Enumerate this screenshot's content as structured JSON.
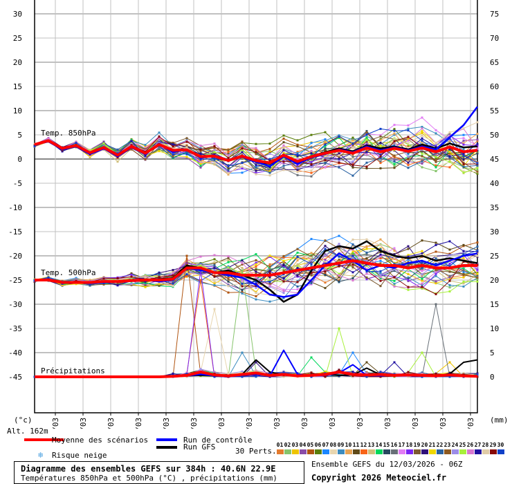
{
  "chart_data": {
    "type": "line",
    "title": "Diagramme des ensembles GEFS sur 384h : 40.6N 22.9E",
    "subtitle": "Températures 850hPa et 500hPa (°C) , précipitations (mm)",
    "left_axis_label": "(°c)",
    "right_axis_label": "(mm)",
    "altitude": "Alt. 162m",
    "ylim_left": [
      -45,
      30
    ],
    "ylim_right_mm": [
      0,
      75
    ],
    "left_ticks": [
      30,
      25,
      20,
      15,
      10,
      5,
      0,
      -5,
      -10,
      -15,
      -20,
      -25,
      -30,
      -35,
      -40,
      -45
    ],
    "right_ticks": [
      75,
      70,
      65,
      60,
      55,
      50,
      45,
      40,
      35,
      30,
      25,
      20,
      15,
      10,
      5,
      0
    ],
    "x_ticks": [
      "13/03",
      "14/03",
      "15/03",
      "16/03",
      "17/03",
      "18/03",
      "19/03",
      "20/03",
      "21/03",
      "22/03",
      "23/03",
      "24/03",
      "25/03",
      "26/03",
      "27/03",
      "28/03"
    ],
    "time_step_hours": 12,
    "panel_labels": {
      "t850": "Temp. 850hPa",
      "t500": "Temp. 500hPa",
      "precip": "Précipitations"
    },
    "series": {
      "t850": {
        "mean": [
          3,
          3.8,
          2.2,
          2.8,
          1.3,
          2.4,
          0.8,
          2.6,
          1.2,
          3.0,
          1.8,
          1.9,
          0.5,
          0.6,
          -0.3,
          0.6,
          -0.3,
          -0.8,
          0.8,
          -0.5,
          0.5,
          1.2,
          1.8,
          1.2,
          2.3,
          1.5,
          2.2,
          1.6,
          2.3,
          1.5,
          2.5,
          1.5,
          1.8
        ],
        "control": [
          3,
          3.6,
          2.0,
          2.6,
          1.0,
          2.2,
          0.5,
          2.4,
          1.0,
          3.2,
          1.4,
          2.0,
          0.2,
          0.8,
          -0.2,
          0.4,
          -0.6,
          -1.5,
          0.5,
          -1.0,
          0.3,
          1.0,
          2.0,
          1.4,
          2.6,
          1.8,
          2.4,
          1.8,
          2.6,
          2.0,
          4.5,
          7,
          10.8
        ],
        "gfs": [
          3,
          3.7,
          2.1,
          2.7,
          1.2,
          2.3,
          0.7,
          2.5,
          1.3,
          3.1,
          1.9,
          1.8,
          0.4,
          0.7,
          -0.4,
          0.7,
          -0.5,
          -1.0,
          0.6,
          -0.7,
          0.6,
          1.4,
          2.2,
          1.6,
          2.8,
          2.2,
          2.6,
          2.0,
          3.0,
          2.2,
          3.2,
          2.4,
          2.6
        ],
        "spread": [
          0.2,
          0.3,
          0.4,
          0.5,
          0.6,
          0.7,
          0.9,
          1.0,
          1.2,
          1.3,
          1.5,
          1.6,
          1.7,
          1.8,
          2.0,
          2.1,
          2.2,
          2.3,
          2.4,
          2.5,
          2.6,
          2.7,
          2.8,
          2.9,
          3.0,
          3.0,
          3.1,
          3.1,
          3.2,
          3.2,
          3.3,
          3.3,
          3.4
        ]
      },
      "t500": {
        "mean": [
          -25,
          -25,
          -25.5,
          -25.5,
          -25.5,
          -25.3,
          -25.3,
          -25.1,
          -25,
          -25,
          -24.8,
          -22.5,
          -22.5,
          -23.5,
          -23.5,
          -24,
          -24,
          -24,
          -23.5,
          -23,
          -22.5,
          -22,
          -21.5,
          -21,
          -21.5,
          -22,
          -22,
          -22.5,
          -22,
          -22.5,
          -22.5,
          -22,
          -22
        ],
        "control": [
          -25,
          -25,
          -25.5,
          -25.6,
          -25.6,
          -25.5,
          -25.4,
          -25.2,
          -25,
          -25.3,
          -25,
          -22.5,
          -23,
          -23.5,
          -24,
          -24.5,
          -26,
          -28,
          -28.5,
          -28,
          -25,
          -22,
          -19.5,
          -21,
          -23,
          -22,
          -22.5,
          -21.5,
          -21,
          -22,
          -21,
          -20,
          -19.5
        ],
        "gfs": [
          -25,
          -25,
          -25.5,
          -25.6,
          -25.5,
          -25.4,
          -25.3,
          -25.1,
          -25,
          -24.8,
          -24.6,
          -22,
          -22.5,
          -23.5,
          -23,
          -24,
          -25,
          -27,
          -29.5,
          -28,
          -23,
          -19,
          -18,
          -18.5,
          -17,
          -19,
          -20,
          -20.5,
          -20,
          -21,
          -20.5,
          -21,
          -21.5
        ],
        "spread": [
          0.2,
          0.3,
          0.4,
          0.5,
          0.5,
          0.6,
          0.7,
          0.8,
          1.0,
          1.2,
          1.5,
          1.8,
          2.0,
          2.2,
          2.4,
          2.6,
          2.8,
          3.0,
          3.2,
          3.4,
          3.6,
          3.8,
          3.8,
          3.8,
          3.7,
          3.6,
          3.5,
          3.4,
          3.3,
          3.2,
          3.2,
          3.2,
          3.2
        ]
      },
      "precip_mm": {
        "mean": [
          0,
          0,
          0,
          0,
          0,
          0,
          0,
          0,
          0,
          0,
          0.1,
          0.3,
          1.0,
          0.4,
          0.2,
          0.5,
          0.8,
          0.3,
          0.5,
          0.2,
          0.3,
          0.5,
          1.0,
          0.5,
          0.4,
          0.5,
          0.3,
          0.4,
          0.3,
          0.2,
          0.4,
          0.2,
          0.1
        ],
        "control": [
          0,
          0,
          0,
          0,
          0,
          0,
          0,
          0,
          0,
          0,
          0,
          0.2,
          0.5,
          0.2,
          0,
          0.3,
          0.5,
          0.2,
          5.5,
          0.5,
          0.2,
          0.3,
          0.8,
          2.5,
          0.3,
          0.2,
          0.4,
          0.2,
          0.3,
          0.2,
          0.5,
          0.2,
          0.1
        ],
        "gfs": [
          0,
          0,
          0,
          0,
          0,
          0,
          0,
          0,
          0,
          0,
          0,
          0.2,
          0.3,
          0.2,
          0,
          0.5,
          3.5,
          1.0,
          0.4,
          0.2,
          0.5,
          0.6,
          0.3,
          0.4,
          1.8,
          0.4,
          0.3,
          0.5,
          0.3,
          0.2,
          0.6,
          3,
          3.5
        ],
        "spikes": [
          [
            5,
            11,
            25
          ],
          [
            12,
            12,
            20
          ],
          [
            18,
            12,
            22
          ],
          [
            8,
            13,
            14
          ],
          [
            2,
            15,
            22
          ],
          [
            9,
            15,
            5
          ],
          [
            20,
            16,
            3
          ],
          [
            14,
            20,
            4
          ],
          [
            25,
            22,
            10
          ],
          [
            7,
            23,
            5
          ],
          [
            11,
            24,
            3
          ],
          [
            27,
            26,
            3
          ],
          [
            25,
            28,
            5
          ],
          [
            16,
            29,
            15
          ],
          [
            3,
            30,
            3
          ]
        ]
      }
    },
    "legend": {
      "mean": "Moyenne des scénarios",
      "control": "Run de contrôle",
      "gfs": "Run GFS",
      "snow": "Risque neige",
      "perts": "30 Perts.",
      "colors": {
        "mean": "#ff0000",
        "control": "#0000ff",
        "gfs": "#000000"
      },
      "pert_numbers": [
        "01",
        "02",
        "03",
        "04",
        "05",
        "06",
        "07",
        "08",
        "09",
        "10",
        "11",
        "12",
        "13",
        "14",
        "15",
        "16",
        "17",
        "18",
        "19",
        "20",
        "21",
        "22",
        "23",
        "24",
        "25",
        "26",
        "27",
        "28",
        "29",
        "30"
      ],
      "pert_colors": [
        "#e47b2e",
        "#86c46b",
        "#eec400",
        "#8a4ca8",
        "#b05410",
        "#5a7e0a",
        "#1a86ff",
        "#e8d6b0",
        "#3c8cc0",
        "#e8a454",
        "#604a18",
        "#f86418",
        "#d0c07c",
        "#00d85c",
        "#284860",
        "#687078",
        "#e27cf4",
        "#7a26f4",
        "#7c5a30",
        "#30107a",
        "#f0d800",
        "#2a62a2",
        "#8e5a20",
        "#9c8ce8",
        "#a8f03c",
        "#d878d0",
        "#2010a0",
        "#e0cca8",
        "#880808",
        "#1040c8"
      ]
    },
    "footer": {
      "run": "Ensemble GEFS du 12/03/2026 - 06Z",
      "copyright": "Copyright 2026 Meteociel.fr"
    }
  }
}
